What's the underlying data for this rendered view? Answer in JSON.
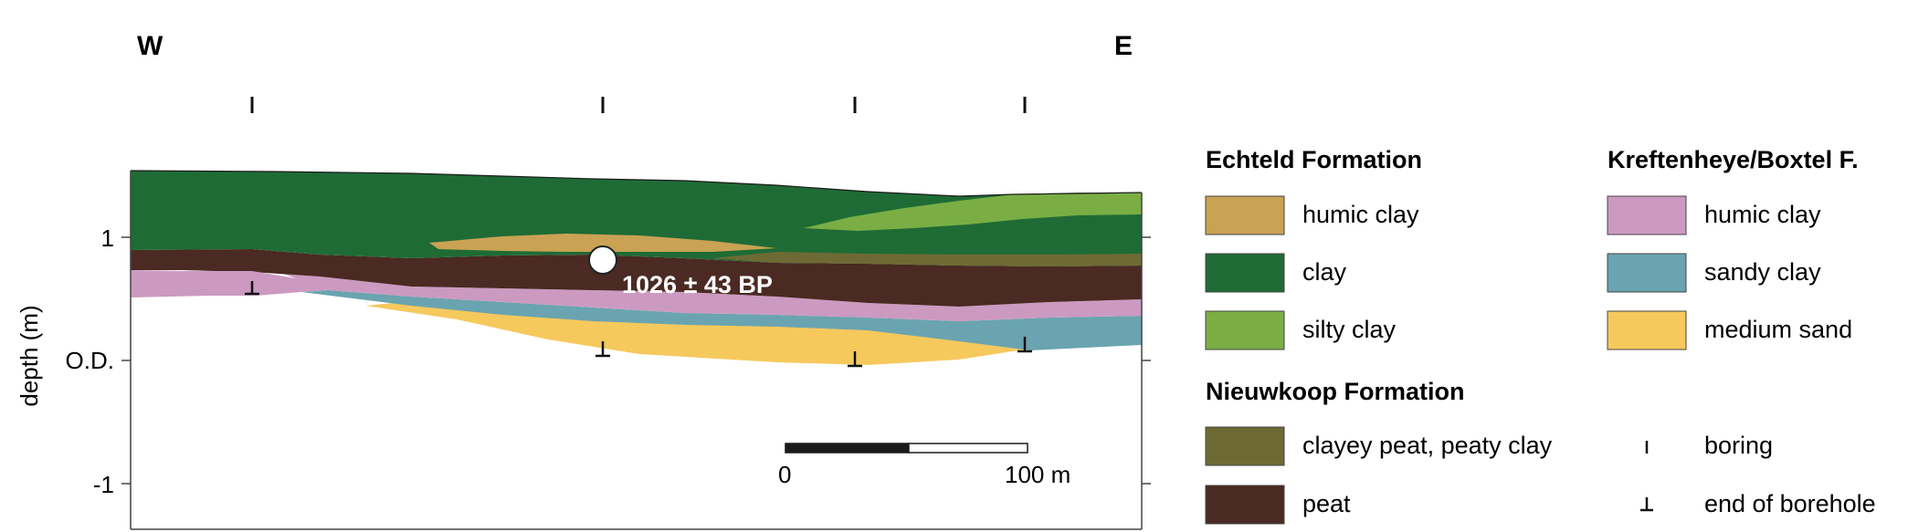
{
  "section": {
    "west_label": "W",
    "east_label": "E",
    "y_axis_label": "depth (m)",
    "y_ticks": [
      {
        "value": 1,
        "label": "1"
      },
      {
        "value": 0,
        "label": "O.D."
      },
      {
        "value": -1,
        "label": "-1"
      }
    ],
    "radiocarbon_date": "1026 ± 43 BP",
    "scale_bar": {
      "start_label": "0",
      "end_label": "100 m"
    }
  },
  "legend": {
    "echteld": {
      "title": "Echteld Formation",
      "items": [
        {
          "label": "humic clay",
          "color": "#c9a254"
        },
        {
          "label": "clay",
          "color": "#1f6b35"
        },
        {
          "label": "silty clay",
          "color": "#7aae45"
        }
      ]
    },
    "kreftenheye": {
      "title": "Kreftenheye/Boxtel F.",
      "items": [
        {
          "label": "humic clay",
          "color": "#cc9ac1"
        },
        {
          "label": "sandy clay",
          "color": "#6aa4b0"
        },
        {
          "label": "medium sand",
          "color": "#f6c95d"
        }
      ]
    },
    "nieuwkoop": {
      "title": "Nieuwkoop Formation",
      "items": [
        {
          "label": "clayey peat, peaty clay",
          "color": "#6e6a35"
        },
        {
          "label": "peat",
          "color": "#4a2a22"
        }
      ]
    },
    "symbols": [
      {
        "label": "boring",
        "icon": "boring-tick-icon"
      },
      {
        "label": "end of borehole",
        "icon": "end-of-borehole-icon"
      }
    ]
  }
}
